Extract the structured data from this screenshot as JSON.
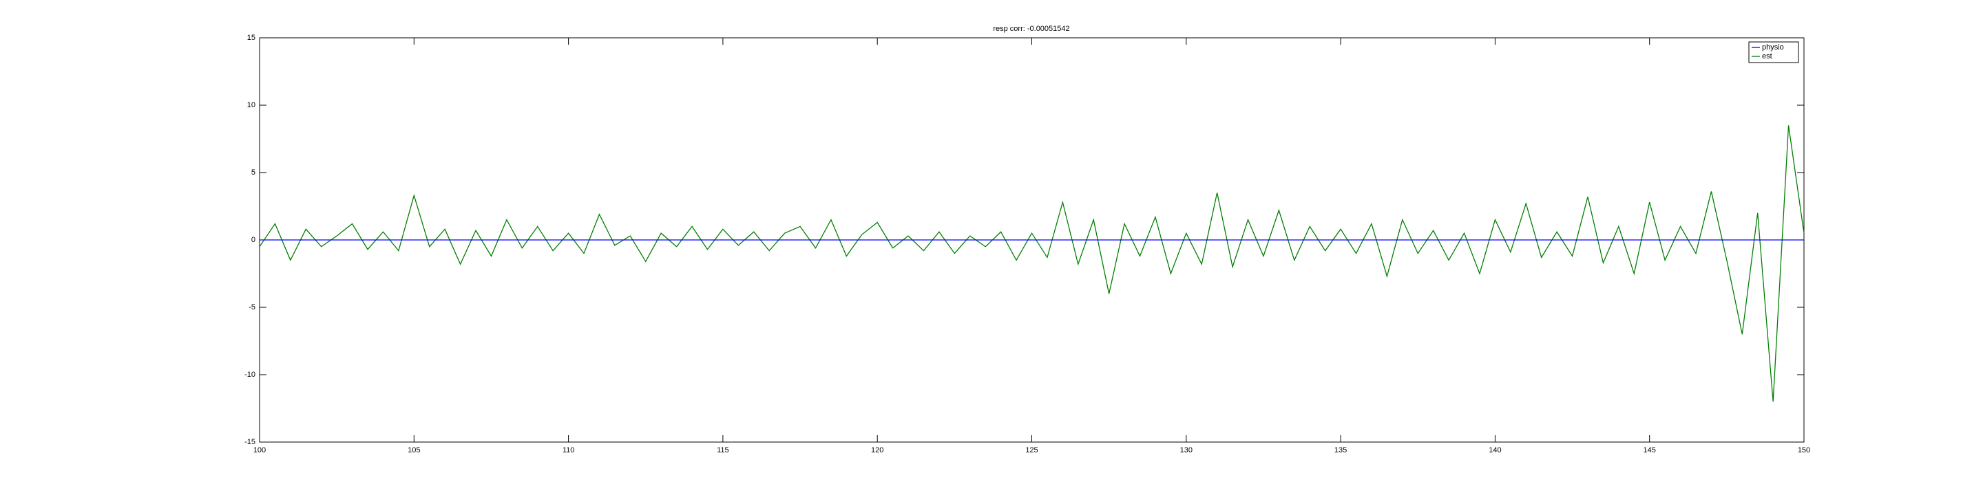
{
  "chart_data": {
    "type": "line",
    "title": "resp corr: -0.00051542",
    "x": [
      100,
      100.5,
      101,
      101.5,
      102,
      102.5,
      103,
      103.5,
      104,
      104.5,
      105,
      105.5,
      106,
      106.5,
      107,
      107.5,
      108,
      108.5,
      109,
      109.5,
      110,
      110.5,
      111,
      111.5,
      112,
      112.5,
      113,
      113.5,
      114,
      114.5,
      115,
      115.5,
      116,
      116.5,
      117,
      117.5,
      118,
      118.5,
      119,
      119.5,
      120,
      120.5,
      121,
      121.5,
      122,
      122.5,
      123,
      123.5,
      124,
      124.5,
      125,
      125.5,
      126,
      126.5,
      127,
      127.5,
      128,
      128.5,
      129,
      129.5,
      130,
      130.5,
      131,
      131.5,
      132,
      132.5,
      133,
      133.5,
      134,
      134.5,
      135,
      135.5,
      136,
      136.5,
      137,
      137.5,
      138,
      138.5,
      139,
      139.5,
      140,
      140.5,
      141,
      141.5,
      142,
      142.5,
      143,
      143.5,
      144,
      144.5,
      145,
      145.5,
      146,
      146.5,
      147,
      147.5,
      148,
      148.5,
      149,
      149.5,
      150
    ],
    "series": [
      {
        "name": "physio",
        "color": "#0000ff",
        "values": [
          0,
          0,
          0,
          0,
          0,
          0,
          0,
          0,
          0,
          0,
          0,
          0,
          0,
          0,
          0,
          0,
          0,
          0,
          0,
          0,
          0,
          0,
          0,
          0,
          0,
          0,
          0,
          0,
          0,
          0,
          0,
          0,
          0,
          0,
          0,
          0,
          0,
          0,
          0,
          0,
          0,
          0,
          0,
          0,
          0,
          0,
          0,
          0,
          0,
          0,
          0,
          0,
          0,
          0,
          0,
          0,
          0,
          0,
          0,
          0,
          0,
          0,
          0,
          0,
          0,
          0,
          0,
          0,
          0,
          0,
          0,
          0,
          0,
          0,
          0,
          0,
          0,
          0,
          0,
          0,
          0,
          0,
          0,
          0,
          0,
          0,
          0,
          0,
          0,
          0,
          0,
          0,
          0,
          0,
          0,
          0,
          0,
          0,
          0,
          0,
          0
        ]
      },
      {
        "name": "est",
        "color": "#008000",
        "values": [
          -0.5,
          1.2,
          -1.5,
          0.8,
          -0.5,
          0.3,
          1.2,
          -0.7,
          0.6,
          -0.8,
          3.3,
          -0.5,
          0.8,
          -1.8,
          0.7,
          -1.2,
          1.5,
          -0.6,
          1.0,
          -0.8,
          0.5,
          -1.0,
          1.9,
          -0.4,
          0.3,
          -1.6,
          0.5,
          -0.5,
          1.0,
          -0.7,
          0.8,
          -0.4,
          0.6,
          -0.8,
          0.5,
          1.0,
          -0.6,
          1.5,
          -1.2,
          0.4,
          1.3,
          -0.6,
          0.3,
          -0.8,
          0.6,
          -1.0,
          0.3,
          -0.5,
          0.6,
          -1.5,
          0.5,
          -1.3,
          2.8,
          -1.8,
          1.5,
          -4.0,
          1.2,
          -1.2,
          1.7,
          -2.5,
          0.5,
          -1.8,
          3.5,
          -2.0,
          1.5,
          -1.2,
          2.2,
          -1.5,
          1.0,
          -0.8,
          0.8,
          -1.0,
          1.2,
          -2.7,
          1.5,
          -1.0,
          0.7,
          -1.5,
          0.5,
          -2.5,
          1.5,
          -0.9,
          2.7,
          -1.3,
          0.6,
          -1.2,
          3.2,
          -1.7,
          1.0,
          -2.5,
          2.8,
          -1.5,
          1.0,
          -1.0,
          3.6,
          -1.5,
          -7.0,
          2.0,
          -12.0,
          8.5,
          0.5
        ]
      }
    ],
    "xlim": [
      100,
      150
    ],
    "xticks": [
      100,
      105,
      110,
      115,
      120,
      125,
      130,
      135,
      140,
      145,
      150
    ],
    "ylim": [
      -15,
      15
    ],
    "yticks": [
      -15,
      -10,
      -5,
      0,
      5,
      10,
      15
    ],
    "legend": "top-right"
  }
}
